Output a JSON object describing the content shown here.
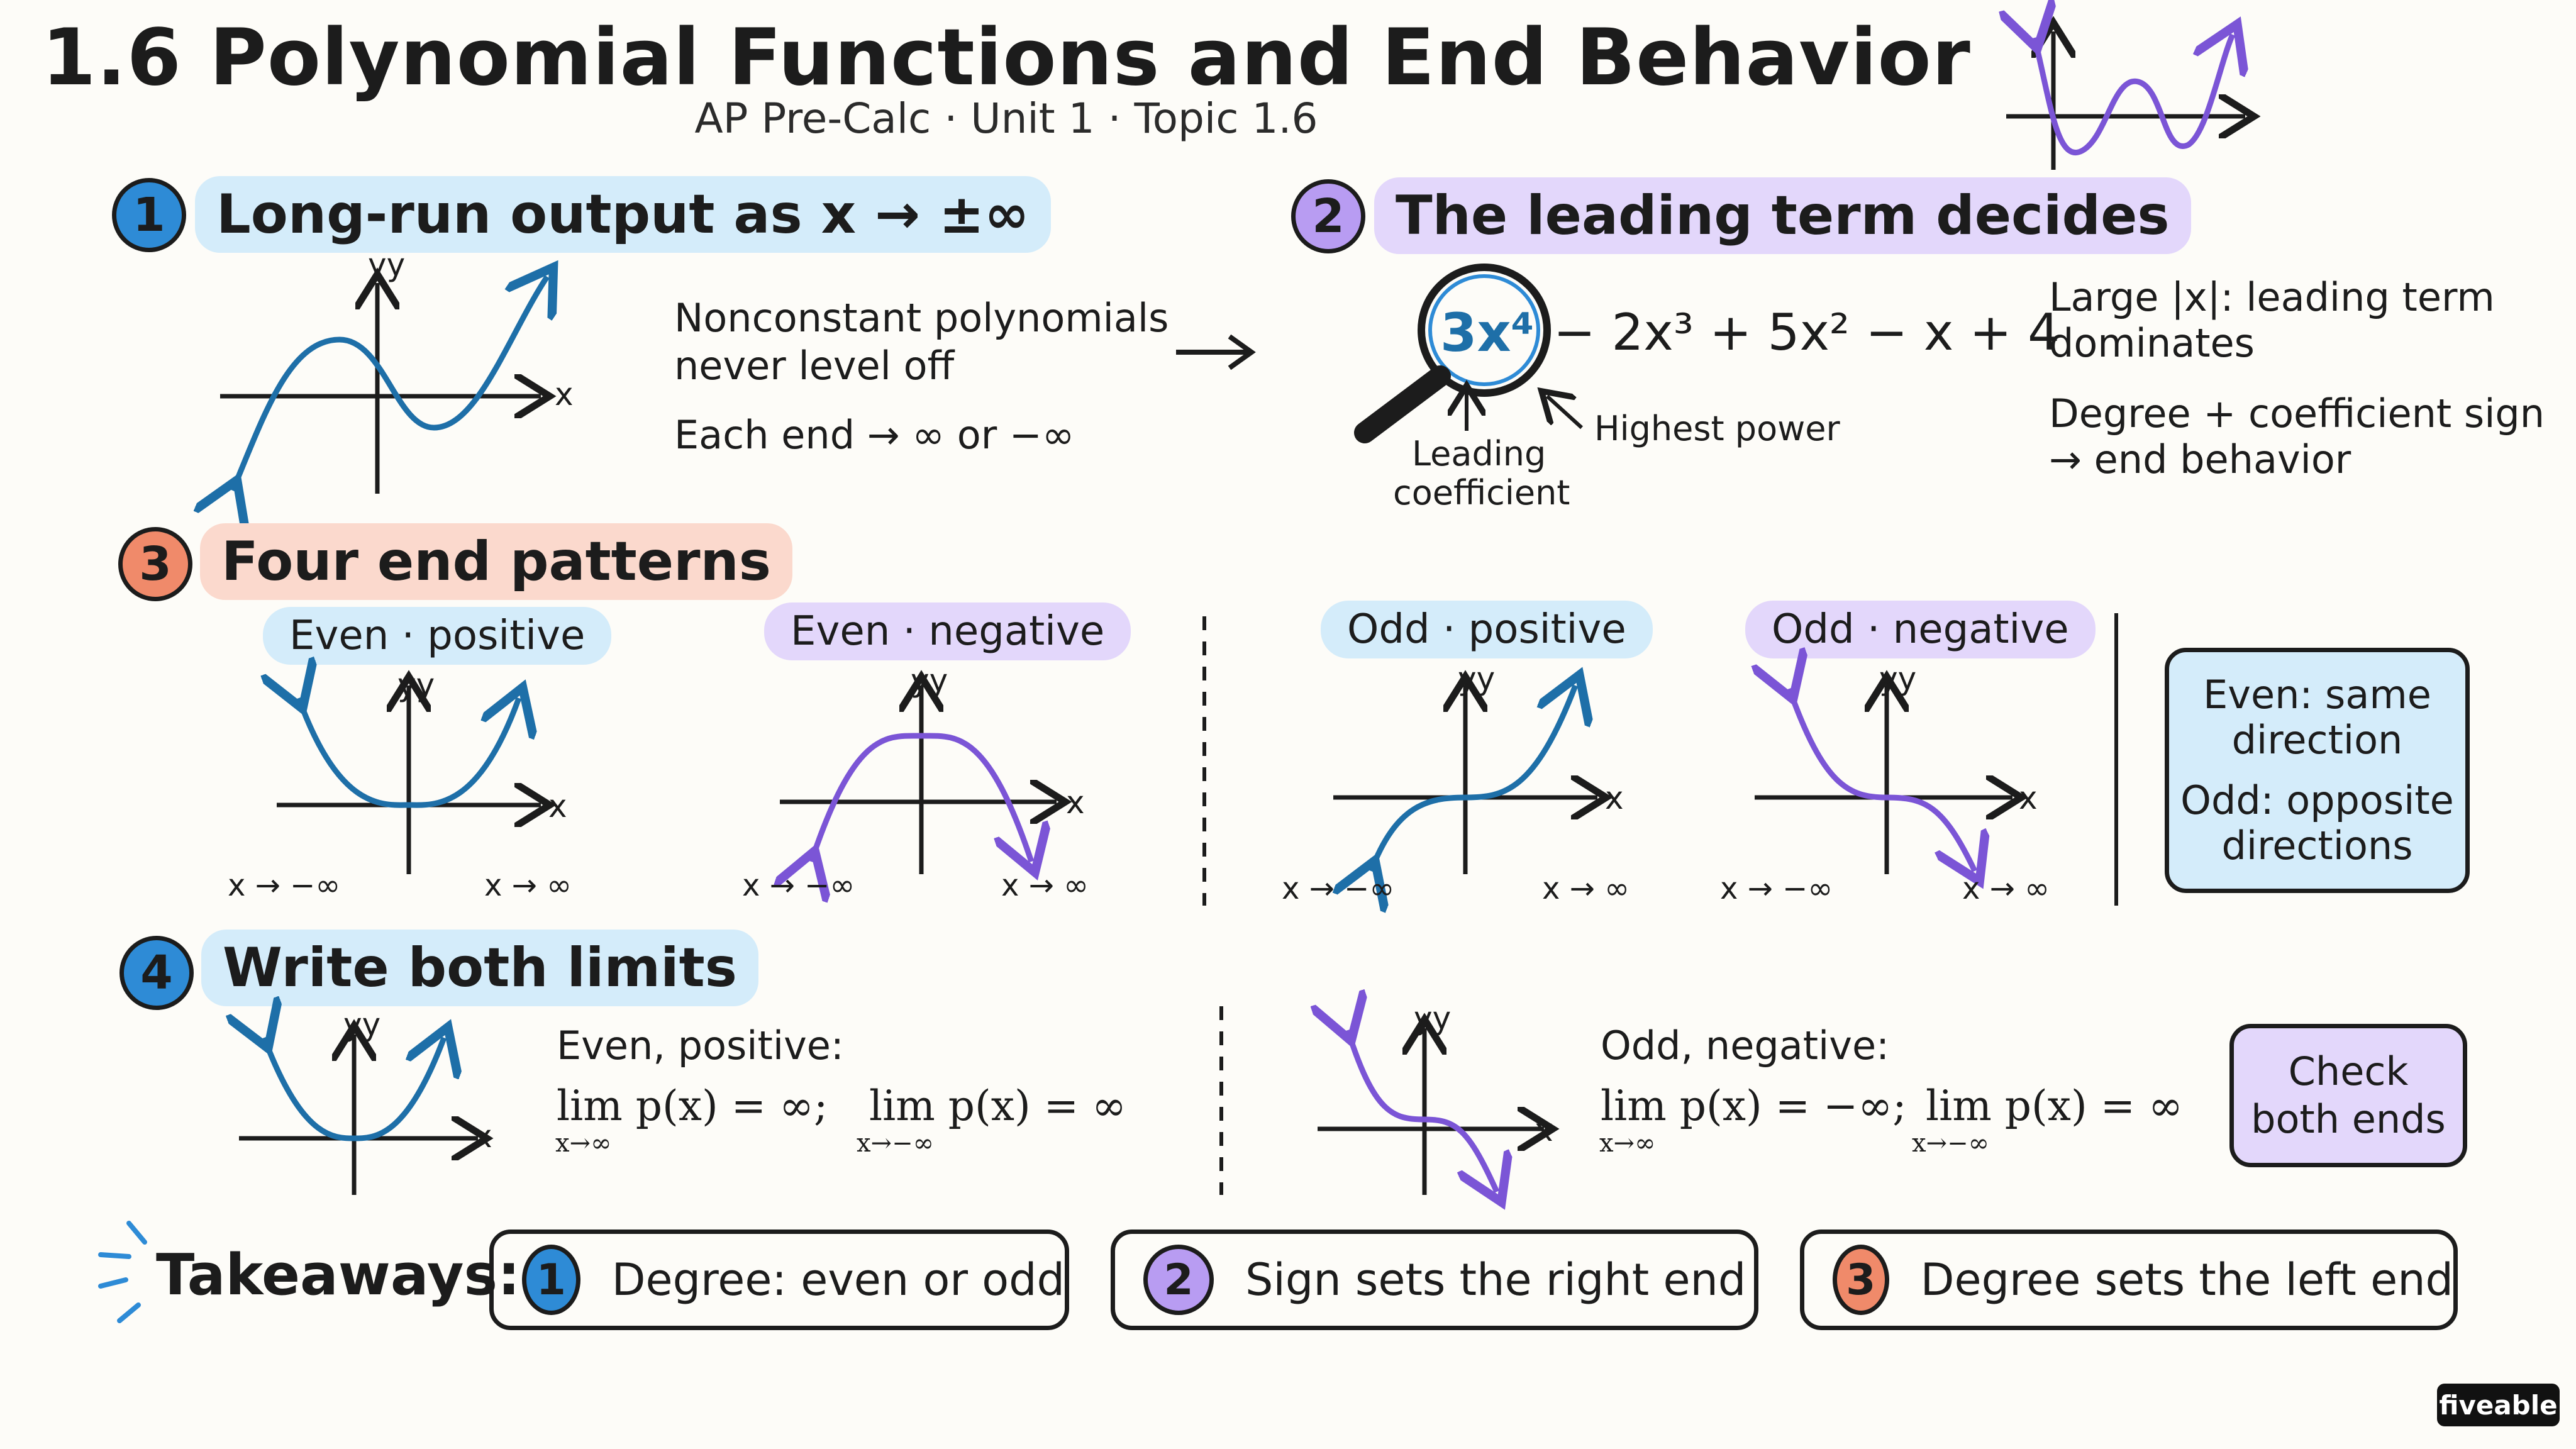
{
  "header": {
    "title": "1.6 Polynomial Functions and End Behavior",
    "subtitle": "AP Pre-Calc · Unit 1 · Topic 1.6"
  },
  "section1": {
    "number": "1",
    "title": "Long-run output as x → ±∞",
    "point1_line1": "Nonconstant polynomials",
    "point1_line2": "never level off",
    "point2": "Each end → ∞ or −∞",
    "axis_x": "x",
    "axis_y": "yy"
  },
  "section2": {
    "number": "2",
    "title": "The leading term decides",
    "leading_term": "3x⁴",
    "rest_of_polynomial": "− 2x³ + 5x² − x + 4",
    "label_coefficient_line1": "Leading",
    "label_coefficient_line2": "coefficient",
    "label_power": "Highest power",
    "note1_line1": "Large |x|: leading term",
    "note1_line2": "dominates",
    "note2_line1": "Degree + coefficient sign",
    "note2_line2": "→ end behavior"
  },
  "section3": {
    "number": "3",
    "title": "Four end patterns",
    "patterns": [
      {
        "label": "Even · positive",
        "left_end": "x → −∞",
        "right_end": "x → ∞"
      },
      {
        "label": "Even · negative",
        "left_end": "x → −∞",
        "right_end": "x → ∞"
      },
      {
        "label": "Odd · positive",
        "left_end": "x → −∞",
        "right_end": "x → ∞"
      },
      {
        "label": "Odd · negative",
        "left_end": "x → −∞",
        "right_end": "x → ∞"
      }
    ],
    "summary_line1": "Even: same",
    "summary_line2": "direction",
    "summary_line3": "Odd: opposite",
    "summary_line4": "directions"
  },
  "section4": {
    "number": "4",
    "title": "Write both limits",
    "example1_label": "Even, positive:",
    "example1_lim1": "lim p(x) = ∞;",
    "example1_sub1": "x→∞",
    "example1_lim2": "lim p(x) = ∞",
    "example1_sub2": "x→−∞",
    "example2_label": "Odd, negative:",
    "example2_lim1": "lim p(x) = −∞;",
    "example2_sub1": "x→∞",
    "example2_lim2": "lim p(x) = ∞",
    "example2_sub2": "x→−∞",
    "check_line1": "Check",
    "check_line2": "both ends"
  },
  "takeaways": {
    "label": "Takeaways:",
    "items": [
      {
        "number": "1",
        "text": "Degree: even or odd"
      },
      {
        "number": "2",
        "text": "Sign sets the right end"
      },
      {
        "number": "3",
        "text": "Degree sets the left end"
      }
    ]
  },
  "brand": "fiveable",
  "colors": {
    "blue": "#2e8bd6",
    "blue_curve": "#1e6fa8",
    "purple": "#7b55d6",
    "orange": "#f08a6a",
    "blue_highlight": "#d4ecfa",
    "purple_highlight": "#e3d7fb",
    "orange_highlight": "#fbd9cd"
  }
}
